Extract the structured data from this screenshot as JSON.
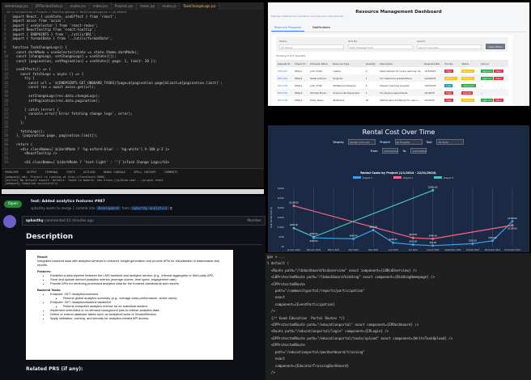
{
  "vscode": {
    "tabs": [
      "deleteLogs.jsx",
      "DTRenderData.js",
      "routes.jsx",
      "index.jsx",
      "Projects.jsx",
      "Index.jsx",
      "routes.js",
      "TaskChangeLogs.jsx"
    ],
    "breadcrumb": "src > components > Projects > TaskChangeLogs > TaskChangeLogs.jsx > (o) default",
    "code_lines": [
      "import React, { useState, useEffect } from 'react';",
      "import axios from 'axios';",
      "import { useSelector } from 'react-redux';",
      "import ReactTooltip from 'react-tooltip';",
      "import { ENDPOINTS } from '../utils/URL';",
      "import { formatDate } from '../utils/formatDate';",
      "",
      "function TaskChangeLogs() {",
      "  const darkMode = useSelector(state => state.theme.darkMode);",
      "  const [changeLogs, setChangeLogs] = useState([]);",
      "  const [pagination, setPagination] = useState({ page: 1, limit: 20 });",
      "",
      "  useEffect(() => {",
      "    const fetchLogs = async () => {",
      "      try {",
      "        const url = `${ENDPOINTS.GET_ONBOARD_TASKS}?page=${pagination.page}&limit=${pagination.limit}`;",
      "        const res = await axios.get(url);",
      "",
      "        setChangeLogs(res.data.changeLogs);",
      "        setPagination(res.data.pagination);",
      "",
      "      } catch (error) {",
      "        console.error('Error fetching change logs', error);",
      "      }",
      "    };",
      "",
      "    fetchLogs();",
      "  }, [pagination.page, pagination.limit]);",
      "",
      "  return (",
      "    <div className={`${darkMode ? 'bg-oxford-blue' : 'bg-white'} h-100 p-3`}>",
      "      <ReactTooltip />",
      "",
      "      <h3 className={`${darkMode ? 'text-light' : ''}`}>Task Change Logs</h3>"
    ],
    "terminal_tabs": [
      "PROBLEMS",
      "OUTPUT",
      "TERMINAL",
      "PORTS",
      "GITLENS",
      "DEBUG CONSOLE",
      "SPELL CHECKER",
      "COMMENTS"
    ],
    "terminal_lines": [
      "[webpack] wds: Project is running at http://localhost:3000/",
      "[eslint] No default export 'default' found in module; see https://github.com/.../plugin-react",
      "[webpack] Compiled successfully"
    ]
  },
  "pr": {
    "status": "Open",
    "title": "feat: Added analytics features #987",
    "subtitle_prefix": "spharthy wants to merge 1 commit into",
    "base_branch": "development",
    "from_label": "from",
    "head_branch": "spharthy-analytics",
    "author": "spharthy",
    "commented": "commented 41 minutes ago",
    "role": "Member",
    "heading": "Description",
    "result_label": "Result:",
    "result_text": "Integrates backend data with analytics services to enhance insight generation and provide APIs for visualization in dashboards and reports.",
    "features_label": "Features:",
    "features": [
      "Establish a data pipeline between the LMS backend and analytics service (e.g., internal aggregator or third party API).",
      "Store and update derived analytics metrics (average scores, time spent, engagement rate).",
      "Provide APIs for retrieving processed analytics data for the frontend dashboards and reports."
    ],
    "backend_label": "Backend Tasks:",
    "endpoint1": "Endpoint: GET /analytics/overview",
    "endpoint1_sub": "Returns global analytics summary (e.g., average class performance, active users).",
    "endpoint2": "Endpoint: GET /analytics/student/:studentId",
    "endpoint2_sub": "Returns computed analytics metrics for an individual student.",
    "tasks": [
      "Implement scheduled or on-demand background jobs to refresh analytics data.",
      "Define or extend database tables such as AnalyticsCache or StudentMetrics.",
      "Apply validation, caching, and security for analytics-related API access."
    ],
    "related": "Related PRS (if any):"
  },
  "dashboard": {
    "title": "Resource Management Dashboard",
    "subtitle": "Manage material and education and resource requirements",
    "tabs": [
      "Resource Requests",
      "Notifications"
    ],
    "filters": [
      {
        "label": "Status",
        "value": "All Status"
      },
      {
        "label": "Sort By",
        "value": "Date (Newest First)"
      },
      {
        "label": "Search",
        "value": "Search requests..."
      }
    ],
    "clear": "Clear Filters",
    "showing": "Showing 5 of 5 requests",
    "columns": [
      "Request ID",
      "Project ID",
      "Educator Name",
      "Resource Type",
      "Quantity",
      "Description",
      "Request Date",
      "Priority",
      "Status",
      "Actions"
    ],
    "rows": [
      {
        "id": "REQ-001",
        "proj": "PROJ-1",
        "name": "John Smith",
        "type": "Laptop",
        "qty": "2",
        "desc": "Need laptops for online learning cla...",
        "date": "1/15/2025",
        "priority": "High",
        "pcolor": "#dc3545",
        "status": "Pending",
        "scolor": "#ffc107",
        "actions": true
      },
      {
        "id": "REQ-002",
        "proj": "PROJ-2",
        "name": "Sarah Johnson",
        "type": "Projector",
        "qty": "1",
        "desc": "For classroom presentations",
        "date": "1/20/2025",
        "priority": "Medium",
        "pcolor": "#ffc107",
        "status": "Pending",
        "scolor": "#ffc107",
        "actions": true
      },
      {
        "id": "REQ-003",
        "proj": "PROJ-1",
        "name": "John Smith",
        "type": "Whiteboard Markers",
        "qty": "5",
        "desc": "Regular teaching supplies",
        "date": "1/25/2025",
        "priority": "Low",
        "pcolor": "#17a2b8",
        "status": "Approved",
        "scolor": "#28a745",
        "actions": false
      },
      {
        "id": "REQ-004",
        "proj": "PROJ-3",
        "name": "Michael Brown",
        "type": "Science Lab Equipment",
        "qty": "1",
        "desc": "For physics experiments",
        "date": "2/1/2025",
        "priority": "High",
        "pcolor": "#dc3545",
        "status": "Denied",
        "scolor": "#dc3545",
        "actions": false
      },
      {
        "id": "REQ-005",
        "proj": "PROJ-2",
        "name": "Emily Davis",
        "type": "Textbooks",
        "qty": "30",
        "desc": "Mathematics textbooks for new s...",
        "date": "2/5/2025",
        "priority": "High",
        "pcolor": "#dc3545",
        "status": "Pending",
        "scolor": "#ffc107",
        "actions": true
      }
    ],
    "approve": "Approve",
    "deny": "Deny",
    "none": "—"
  },
  "chart_panel": {
    "title": "Rental Cost Over Time",
    "display_label": "Display:",
    "display_value": "Rental cost over",
    "project_label": "Project:",
    "project_value": "All Projects",
    "tool_label": "Tool:",
    "tool_value": "All Tools",
    "from_label": "From:",
    "from_value": "01/01/2024",
    "to_label": "To:",
    "to_value": "12/31/2024"
  },
  "chart_data": {
    "type": "line",
    "title": "Rental Costs by Project (1/1/2024 - 12/31/2024)",
    "xlabel": "Month/Year",
    "ylabel": "Total Rental Cost ($)",
    "categories": [
      "January 2024",
      "February 2024",
      "March 2024",
      "April 2024",
      "May 2024",
      "June 2024",
      "July 2024",
      "August 2024",
      "September 2024",
      "October 2024",
      "November 2024",
      "December 2024"
    ],
    "ylim": [
      0,
      3000
    ],
    "yticks": [
      "$0",
      "$500",
      "$1000",
      "$1500",
      "$2000",
      "$2500",
      "$3000"
    ],
    "grid": true,
    "legend": "top",
    "series": [
      {
        "name": "Project 1",
        "color": "#36a2eb",
        "values": [
          null,
          450,
          null,
          400,
          850,
          200,
          100,
          50,
          null,
          150,
          300,
          1300
        ]
      },
      {
        "name": "Project 2",
        "color": "#ff6384",
        "values": [
          2100,
          null,
          null,
          null,
          null,
          null,
          450,
          400,
          null,
          null,
          null,
          1100
        ]
      },
      {
        "name": "Project 3",
        "color": "#4bc0c0",
        "values": [
          950,
          500,
          null,
          null,
          null,
          null,
          null,
          2900,
          null,
          null,
          null,
          null
        ]
      }
    ]
  },
  "routes": {
    "lines": [
      "gpx > ...",
      "t default (",
      "  <Route path=\"/lbdashboard/bidoverview\" exact component={LBBidOverview} />",
      "  <LBProtectedRoute path=\"/lbdashboard/bidding\" exact component={BiddingHomepage} />",
      "  <CPProtectedRoute",
      "    path=\"/communityportal/reports/participation\"",
      "    exact",
      "    component={EventParticipation}",
      "  />",
      "  {/* Good Education  Portal Routes */}",
      "  <EPProtectedRoute path=\"/educationportal\" exact component={EPDashboard} />",
      "  <Route path=\"/educationportal/login\" component={EPLogin} />",
      "  <EPProtectedRoute path=\"/educationportal/tasks/upload\" exact component={WriteTaskUpload} />",
      "  <EPProtectedRoute",
      "    path=\"/educationportal/pm/dashboard/training\"",
      "    exact",
      "    component={EducatorTrainingDashboard}",
      "  />"
    ]
  }
}
